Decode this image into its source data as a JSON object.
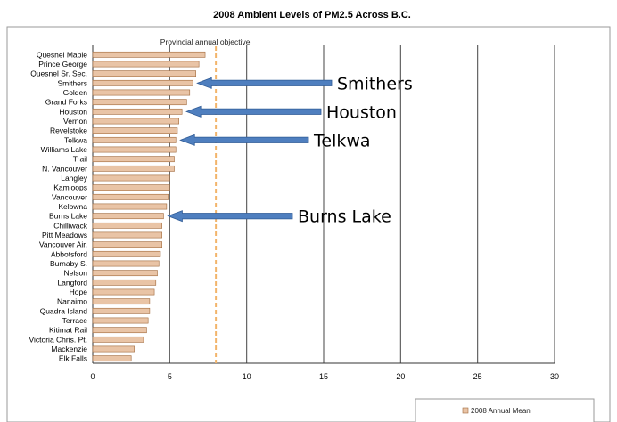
{
  "chart_data": {
    "type": "bar",
    "orientation": "horizontal",
    "title": "2008 Ambient Levels of PM2.5 Across B.C.",
    "categories": [
      "Quesnel Maple",
      "Prince George",
      "Quesnel Sr. Sec.",
      "Smithers",
      "Golden",
      "Grand Forks",
      "Houston",
      "Vernon",
      "Revelstoke",
      "Telkwa",
      "Williams Lake",
      "Trail",
      "N. Vancouver",
      "Langley",
      "Kamloops",
      "Vancouver",
      "Kelowna",
      "Burns Lake",
      "Chilliwack",
      "Pitt Meadows",
      "Vancouver Air.",
      "Abbotsford",
      "Burnaby S.",
      "Nelson",
      "Langford",
      "Hope",
      "Nanaimo",
      "Quadra Island",
      "Terrace",
      "Kitimat Rail",
      "Victoria Chris. Pt.",
      "Mackenzie",
      "Elk Falls"
    ],
    "series": [
      {
        "name": "2008  Annual Mean",
        "color": "#e9c4a6",
        "values": [
          7.3,
          6.9,
          6.7,
          6.5,
          6.3,
          6.1,
          5.8,
          5.6,
          5.5,
          5.4,
          5.4,
          5.3,
          5.3,
          5.0,
          5.0,
          4.9,
          4.8,
          4.6,
          4.5,
          4.5,
          4.5,
          4.4,
          4.3,
          4.2,
          4.1,
          4.0,
          3.7,
          3.7,
          3.6,
          3.5,
          3.3,
          2.7,
          2.5
        ]
      }
    ],
    "xlim": [
      0,
      30
    ],
    "xticks": [
      0,
      5,
      10,
      15,
      20,
      25,
      30
    ],
    "grid": "vertical",
    "legend": "bottom-right",
    "annotations": [
      {
        "type": "reference-line",
        "label": "Provincial annual objective",
        "value": 8,
        "color": "#f2b46a"
      }
    ]
  },
  "callouts": [
    {
      "label": "Smithers",
      "target": "Smithers"
    },
    {
      "label": "Houston",
      "target": "Houston"
    },
    {
      "label": "Telkwa",
      "target": "Telkwa"
    },
    {
      "label": "Burns Lake",
      "target": "Burns Lake"
    }
  ],
  "colors": {
    "bar_fill": "#e9c4a6",
    "bar_stroke": "#a06a3c",
    "arrow_fill": "#4f7fbf",
    "arrow_stroke": "#2f5b96",
    "grid": "#555555",
    "frame": "#9a9a9a"
  }
}
